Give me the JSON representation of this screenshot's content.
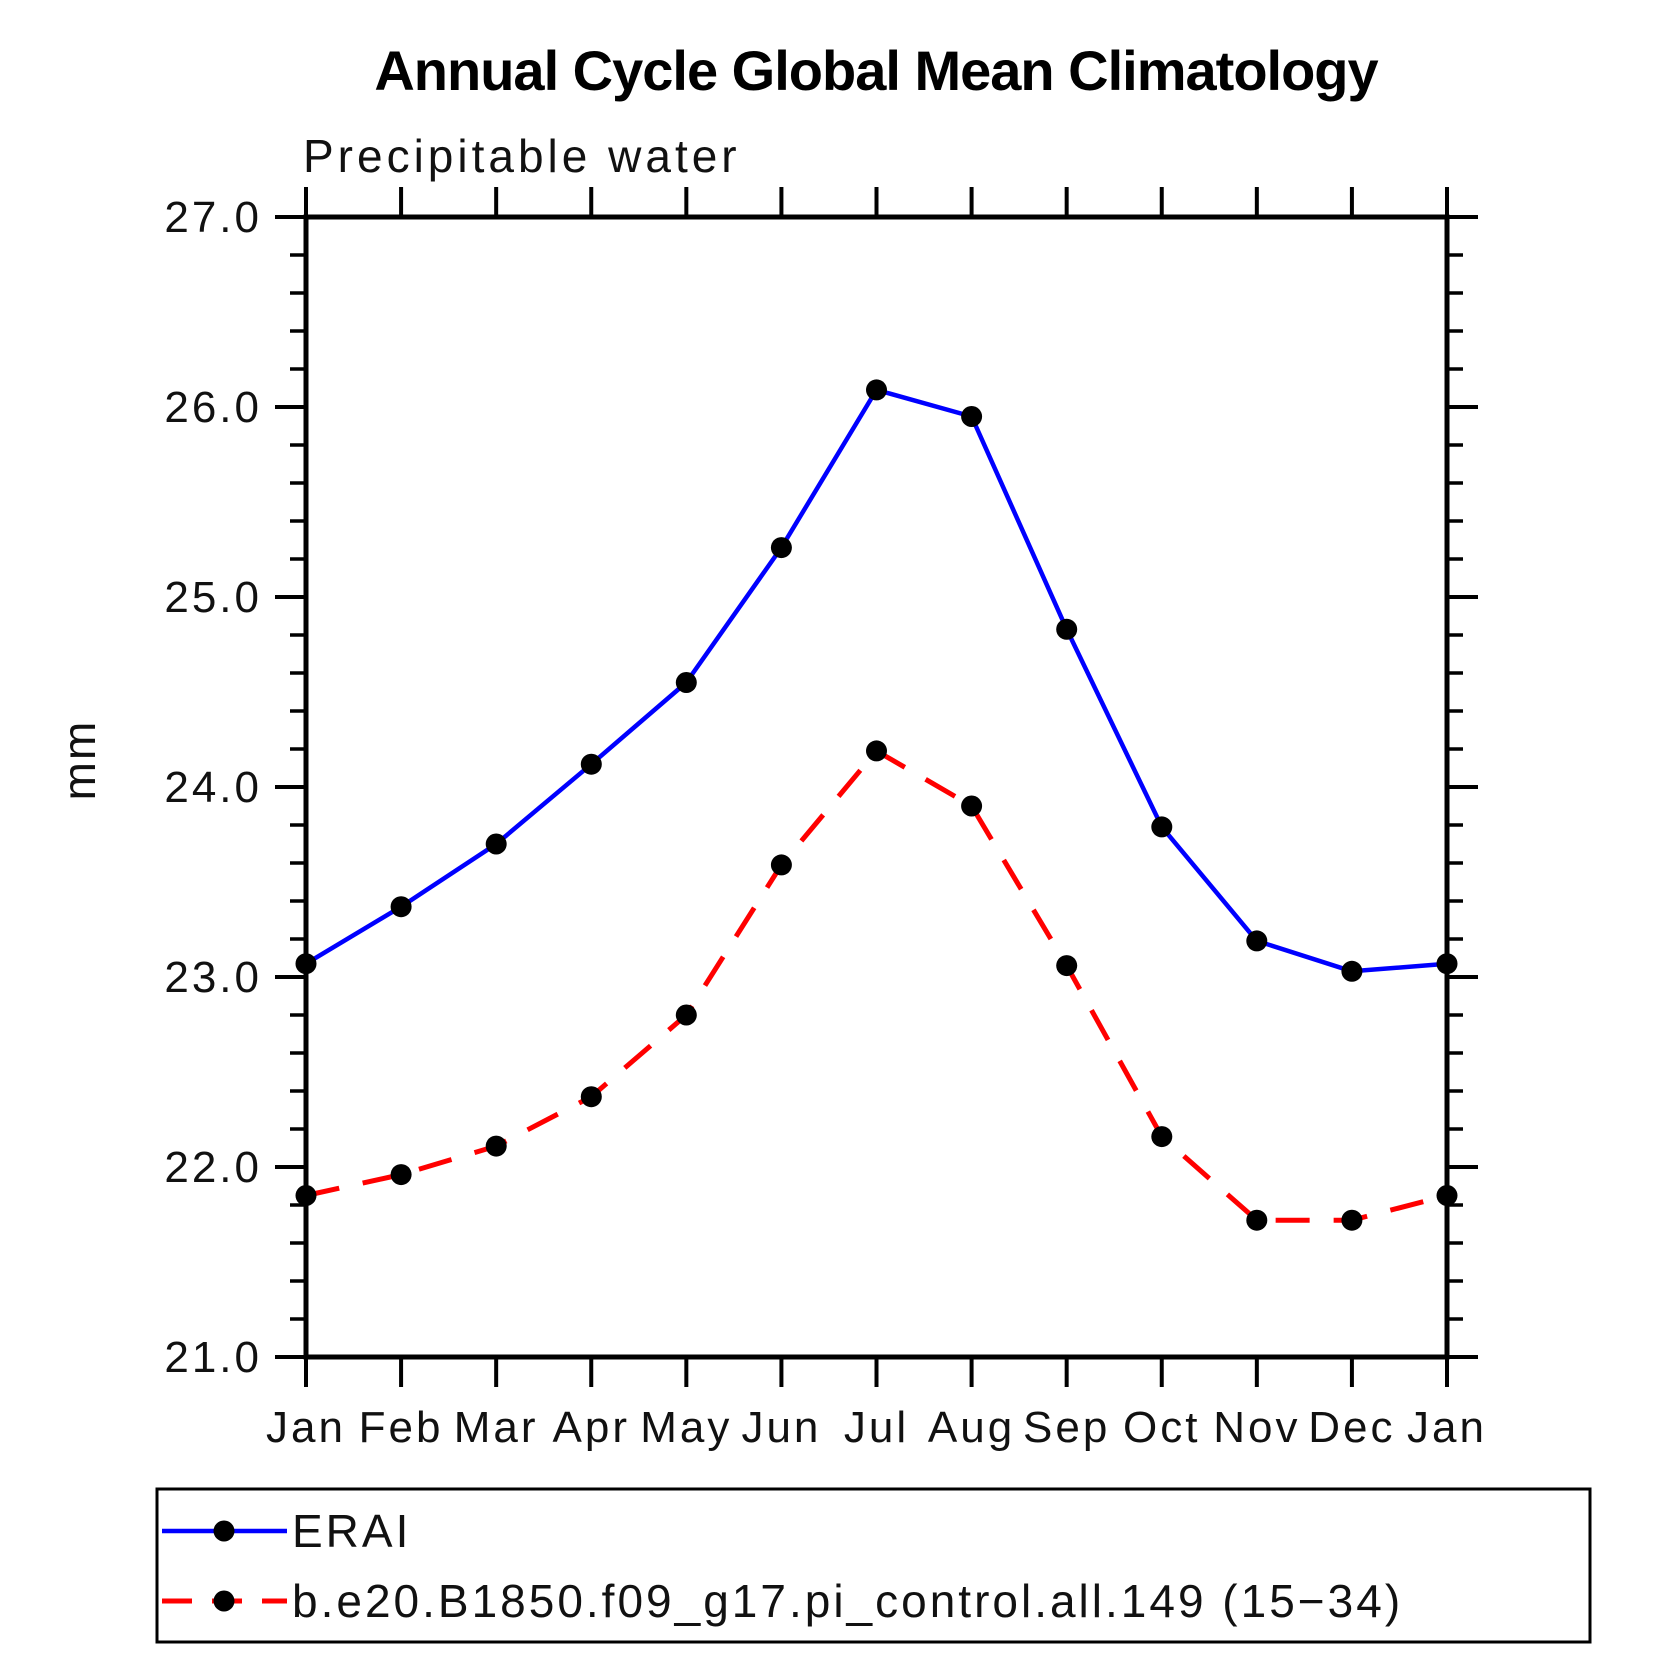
{
  "title": "Annual Cycle Global Mean Climatology",
  "chart_data": {
    "type": "line",
    "title": "Annual Cycle Global Mean Climatology",
    "subtitle": "Precipitable water",
    "ylabel": "mm",
    "xlabel": "",
    "categories": [
      "Jan",
      "Feb",
      "Mar",
      "Apr",
      "May",
      "Jun",
      "Jul",
      "Aug",
      "Sep",
      "Oct",
      "Nov",
      "Dec",
      "Jan"
    ],
    "ylim": [
      21.0,
      27.0
    ],
    "ytick_step": 1.0,
    "yminor_step": 0.2,
    "ytick_format_decimals": 1,
    "grid": false,
    "legend_position": "bottom-left-box",
    "axis_color": "#000000",
    "marker_color": "#000000",
    "series": [
      {
        "name": "ERAI",
        "color": "#0000ff",
        "style": "solid",
        "marker": "circle",
        "values": [
          23.07,
          23.37,
          23.7,
          24.12,
          24.55,
          25.26,
          26.09,
          25.95,
          24.83,
          23.79,
          23.19,
          23.03,
          23.07
        ]
      },
      {
        "name": "b.e20.B1850.f09_g17.pi_control.all.149 (15−34)",
        "color": "#ff0000",
        "style": "dashed",
        "marker": "circle",
        "values": [
          21.85,
          21.96,
          22.11,
          22.37,
          22.8,
          23.59,
          24.19,
          23.9,
          23.06,
          22.16,
          21.72,
          21.72,
          21.85
        ]
      }
    ]
  }
}
